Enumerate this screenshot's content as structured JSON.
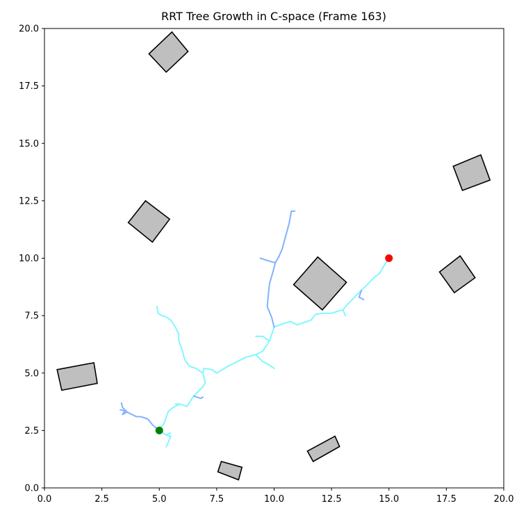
{
  "chart_data": {
    "type": "scatter",
    "title": "RRT Tree Growth in C-space (Frame 163)",
    "xlabel": "",
    "ylabel": "",
    "xlim": [
      0,
      20
    ],
    "ylim": [
      0,
      20
    ],
    "grid": false,
    "xticks": [
      "0.0",
      "2.5",
      "5.0",
      "7.5",
      "10.0",
      "12.5",
      "15.0",
      "17.5",
      "20.0"
    ],
    "yticks": [
      "0.0",
      "2.5",
      "5.0",
      "7.5",
      "10.0",
      "12.5",
      "15.0",
      "17.5",
      "20.0"
    ],
    "obstacle_fill": "#bfbfbf",
    "obstacle_edge": "#000000",
    "obstacles": [
      {
        "name": "obstacle-1",
        "points": [
          [
            4.55,
            18.9
          ],
          [
            5.3,
            18.1
          ],
          [
            6.25,
            19.0
          ],
          [
            5.55,
            19.85
          ]
        ]
      },
      {
        "name": "obstacle-2",
        "points": [
          [
            3.65,
            11.55
          ],
          [
            4.4,
            12.5
          ],
          [
            5.45,
            11.7
          ],
          [
            4.7,
            10.7
          ]
        ]
      },
      {
        "name": "obstacle-3",
        "points": [
          [
            17.8,
            14.0
          ],
          [
            19.0,
            14.5
          ],
          [
            19.4,
            13.4
          ],
          [
            18.2,
            12.95
          ]
        ]
      },
      {
        "name": "obstacle-4",
        "points": [
          [
            17.2,
            9.4
          ],
          [
            18.1,
            10.1
          ],
          [
            18.75,
            9.15
          ],
          [
            17.85,
            8.5
          ]
        ]
      },
      {
        "name": "obstacle-5",
        "points": [
          [
            10.85,
            8.85
          ],
          [
            11.9,
            10.05
          ],
          [
            13.15,
            8.95
          ],
          [
            12.1,
            7.75
          ]
        ]
      },
      {
        "name": "obstacle-6",
        "points": [
          [
            0.55,
            5.15
          ],
          [
            2.15,
            5.45
          ],
          [
            2.3,
            4.55
          ],
          [
            0.75,
            4.25
          ]
        ]
      },
      {
        "name": "obstacle-7",
        "points": [
          [
            11.45,
            1.6
          ],
          [
            12.65,
            2.25
          ],
          [
            12.85,
            1.8
          ],
          [
            11.7,
            1.15
          ]
        ]
      },
      {
        "name": "obstacle-8",
        "points": [
          [
            7.55,
            0.7
          ],
          [
            8.45,
            0.35
          ],
          [
            8.6,
            0.9
          ],
          [
            7.7,
            1.15
          ]
        ]
      }
    ],
    "start": {
      "x": 5.0,
      "y": 2.5,
      "color": "#008000"
    },
    "goal": {
      "x": 15.0,
      "y": 10.0,
      "color": "#ff0000"
    },
    "tree_color_light": "#7ff7ff",
    "tree_color_dark": "#7fb0ff",
    "tree_branches": [
      {
        "tone": "light",
        "points": [
          [
            5.0,
            2.5
          ],
          [
            5.3,
            2.3
          ],
          [
            5.5,
            2.25
          ],
          [
            5.4,
            2.0
          ],
          [
            5.3,
            1.8
          ]
        ]
      },
      {
        "tone": "light",
        "points": [
          [
            5.3,
            2.3
          ],
          [
            5.5,
            2.4
          ]
        ]
      },
      {
        "tone": "dark",
        "points": [
          [
            5.0,
            2.5
          ],
          [
            4.7,
            2.75
          ],
          [
            4.5,
            3.0
          ],
          [
            4.2,
            3.1
          ],
          [
            4.0,
            3.1
          ],
          [
            3.8,
            3.2
          ],
          [
            3.6,
            3.3
          ],
          [
            3.4,
            3.2
          ]
        ]
      },
      {
        "tone": "dark",
        "points": [
          [
            3.6,
            3.3
          ],
          [
            3.4,
            3.5
          ],
          [
            3.35,
            3.7
          ]
        ]
      },
      {
        "tone": "dark",
        "points": [
          [
            3.4,
            3.2
          ],
          [
            3.5,
            3.35
          ],
          [
            3.3,
            3.4
          ]
        ]
      },
      {
        "tone": "light",
        "points": [
          [
            5.0,
            2.5
          ],
          [
            5.2,
            2.8
          ],
          [
            5.4,
            3.35
          ],
          [
            5.6,
            3.5
          ],
          [
            5.9,
            3.65
          ],
          [
            6.2,
            3.55
          ],
          [
            6.3,
            3.7
          ],
          [
            6.5,
            4.0
          ],
          [
            6.7,
            4.2
          ],
          [
            6.9,
            4.4
          ],
          [
            7.0,
            4.6
          ],
          [
            6.9,
            5.0
          ],
          [
            6.95,
            5.2
          ],
          [
            7.3,
            5.15
          ],
          [
            7.5,
            5.0
          ],
          [
            8.0,
            5.3
          ],
          [
            8.4,
            5.5
          ],
          [
            8.8,
            5.7
          ],
          [
            9.2,
            5.8
          ],
          [
            9.5,
            5.95
          ],
          [
            9.8,
            6.4
          ],
          [
            10.0,
            7.0
          ],
          [
            10.4,
            7.15
          ],
          [
            10.7,
            7.25
          ],
          [
            11.0,
            7.1
          ],
          [
            11.3,
            7.2
          ],
          [
            11.6,
            7.3
          ],
          [
            11.8,
            7.55
          ],
          [
            12.1,
            7.6
          ],
          [
            12.5,
            7.6
          ],
          [
            12.8,
            7.7
          ],
          [
            13.0,
            7.75
          ],
          [
            13.2,
            8.0
          ],
          [
            13.5,
            8.3
          ],
          [
            13.8,
            8.6
          ],
          [
            14.1,
            8.9
          ],
          [
            14.4,
            9.2
          ],
          [
            14.6,
            9.35
          ],
          [
            14.8,
            9.7
          ],
          [
            15.0,
            10.0
          ]
        ]
      },
      {
        "tone": "dark",
        "points": [
          [
            13.8,
            8.6
          ],
          [
            13.7,
            8.3
          ],
          [
            13.9,
            8.2
          ]
        ]
      },
      {
        "tone": "light",
        "points": [
          [
            13.0,
            7.75
          ],
          [
            13.1,
            7.5
          ]
        ]
      },
      {
        "tone": "light",
        "points": [
          [
            9.2,
            5.8
          ],
          [
            9.5,
            5.5
          ],
          [
            9.8,
            5.35
          ],
          [
            10.0,
            5.2
          ]
        ]
      },
      {
        "tone": "light",
        "points": [
          [
            9.8,
            6.4
          ],
          [
            9.5,
            6.6
          ],
          [
            9.2,
            6.6
          ]
        ]
      },
      {
        "tone": "dark",
        "points": [
          [
            10.0,
            7.0
          ],
          [
            9.9,
            7.4
          ],
          [
            9.7,
            7.9
          ],
          [
            9.75,
            8.4
          ],
          [
            9.8,
            8.9
          ],
          [
            9.95,
            9.4
          ],
          [
            10.05,
            9.8
          ],
          [
            10.2,
            10.05
          ],
          [
            10.35,
            10.4
          ],
          [
            10.5,
            10.95
          ],
          [
            10.65,
            11.5
          ],
          [
            10.75,
            12.05
          ],
          [
            10.9,
            12.05
          ]
        ]
      },
      {
        "tone": "dark",
        "points": [
          [
            10.05,
            9.8
          ],
          [
            9.7,
            9.9
          ],
          [
            9.4,
            10.0
          ]
        ]
      },
      {
        "tone": "light",
        "points": [
          [
            6.9,
            5.0
          ],
          [
            6.6,
            5.2
          ],
          [
            6.3,
            5.3
          ],
          [
            6.1,
            5.6
          ],
          [
            6.0,
            6.0
          ],
          [
            5.85,
            6.4
          ],
          [
            5.85,
            6.7
          ],
          [
            5.7,
            7.0
          ],
          [
            5.5,
            7.3
          ],
          [
            5.3,
            7.45
          ],
          [
            5.1,
            7.5
          ],
          [
            4.95,
            7.6
          ],
          [
            4.9,
            7.9
          ]
        ]
      },
      {
        "tone": "dark",
        "points": [
          [
            6.5,
            4.0
          ],
          [
            6.8,
            3.9
          ],
          [
            6.9,
            3.95
          ]
        ]
      },
      {
        "tone": "light",
        "points": [
          [
            5.9,
            3.65
          ],
          [
            5.7,
            3.65
          ]
        ]
      }
    ]
  }
}
